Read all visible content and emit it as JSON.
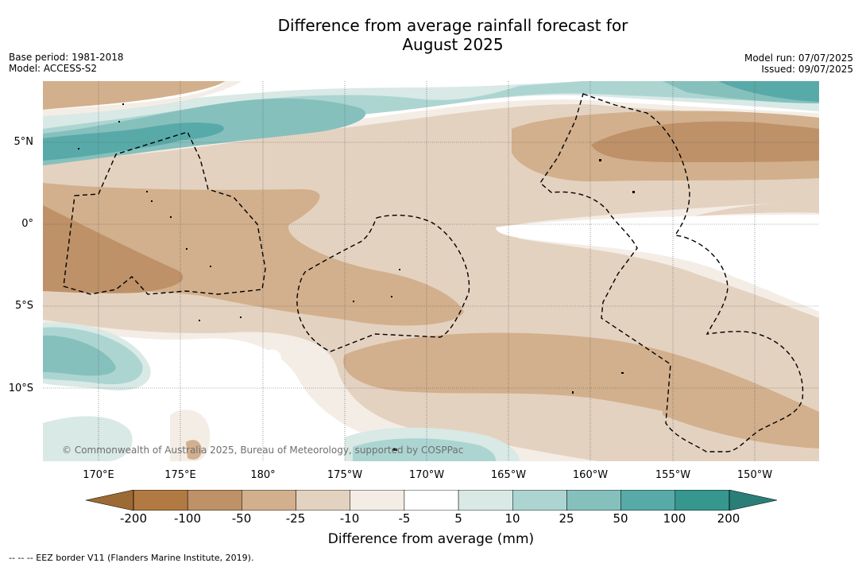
{
  "title_line1": "Difference from average rainfall forecast for",
  "title_line2": "August 2025",
  "meta_left": [
    "Base period: 1981-2018",
    "Model: ACCESS-S2"
  ],
  "meta_right": [
    "Model run: 07/07/2025",
    "Issued: 09/07/2025"
  ],
  "credit": "© Commonwealth of Australia 2025, Bureau of Meteorology, supported by COSPPac",
  "lon_labels": [
    "170°E",
    "175°E",
    "180°",
    "175°W",
    "170°W",
    "165°W",
    "160°W",
    "155°W",
    "150°W"
  ],
  "lat_labels": [
    "5°N",
    "0°",
    "5°S",
    "10°S"
  ],
  "colorbar": {
    "ticks": [
      "-200",
      "-100",
      "-50",
      "-25",
      "-10",
      "-5",
      "5",
      "10",
      "25",
      "50",
      "100",
      "200"
    ],
    "colors": [
      "#b07a42",
      "#be9168",
      "#d2b08d",
      "#e4d2c0",
      "#f4ede6",
      "#ffffff",
      "#d8e9e6",
      "#acd5d2",
      "#86c0bd",
      "#58aaa8",
      "#36978f"
    ],
    "under_color": "#9c6a35",
    "over_color": "#2a7e78",
    "label": "Difference from average (mm)"
  },
  "footer": "-- -- -- EEZ border V11 (Flanders Marine Institute, 2019)."
}
